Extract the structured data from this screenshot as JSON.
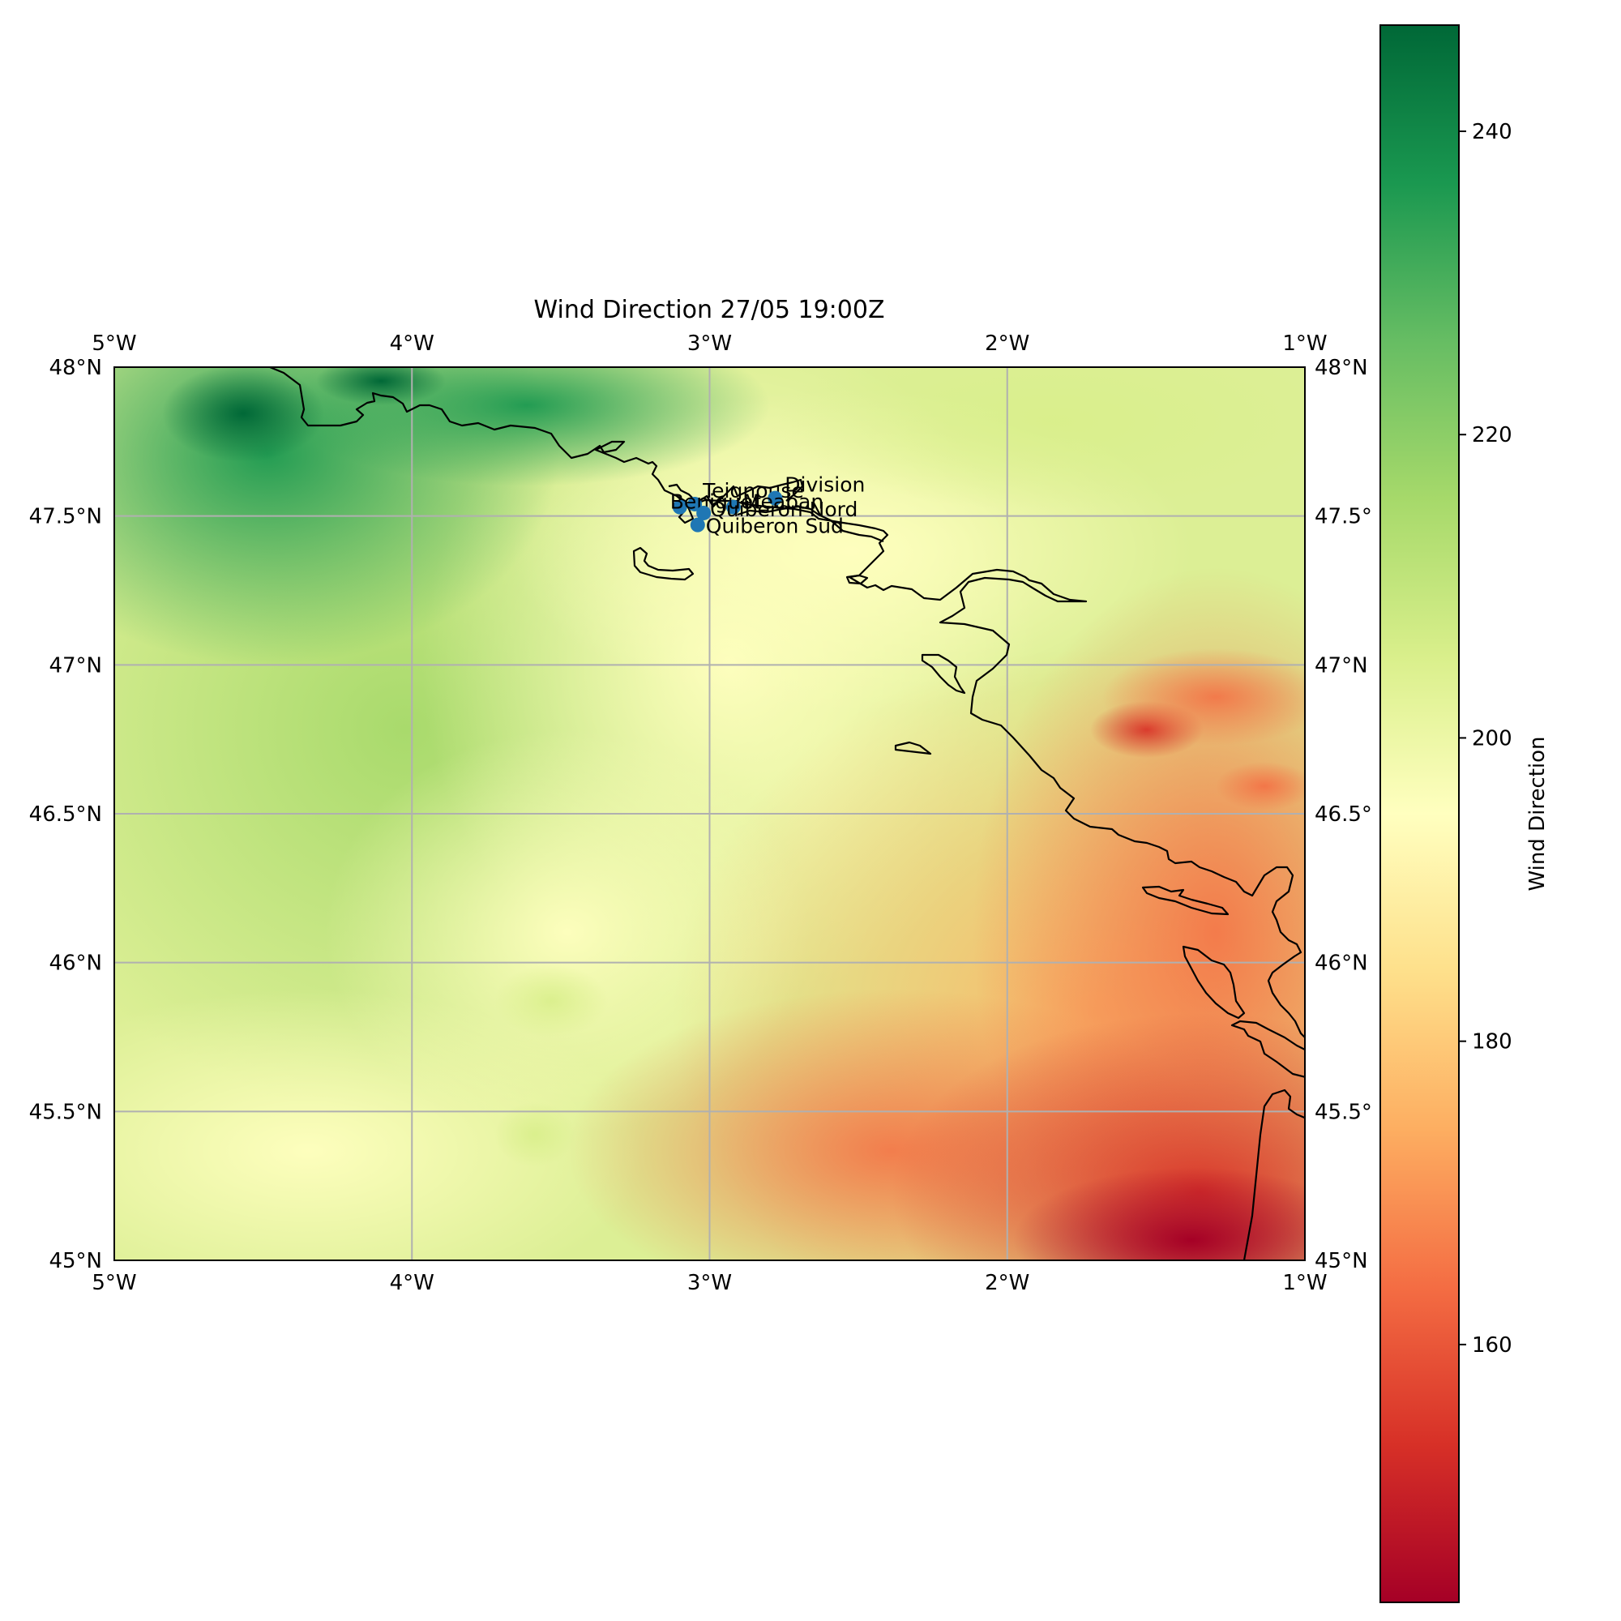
{
  "title": "Wind Direction 27/05 19:00Z",
  "map": {
    "extent": {
      "lon_min": -5,
      "lon_max": -1,
      "lat_min": 45,
      "lat_max": 48
    },
    "lon_ticks": [
      {
        "value": -5,
        "label": "5°W"
      },
      {
        "value": -4,
        "label": "4°W"
      },
      {
        "value": -3,
        "label": "3°W"
      },
      {
        "value": -2,
        "label": "2°W"
      },
      {
        "value": -1,
        "label": "1°W"
      }
    ],
    "lat_ticks_left": [
      {
        "value": 48,
        "label": "48°N"
      },
      {
        "value": 47.5,
        "label": "47.5°N"
      },
      {
        "value": 47,
        "label": "47°N"
      },
      {
        "value": 46.5,
        "label": "46.5°N"
      },
      {
        "value": 46,
        "label": "46°N"
      },
      {
        "value": 45.5,
        "label": "45.5°N"
      },
      {
        "value": 45,
        "label": "45°N"
      }
    ],
    "lat_ticks_right": [
      {
        "value": 48,
        "label": "48°N"
      },
      {
        "value": 47.5,
        "label": "47.5°"
      },
      {
        "value": 47,
        "label": "47°N"
      },
      {
        "value": 46.5,
        "label": "46.5°"
      },
      {
        "value": 46,
        "label": "46°N"
      },
      {
        "value": 45.5,
        "label": "45.5°"
      },
      {
        "value": 45,
        "label": "45°N"
      }
    ],
    "gridlines": true,
    "coastline_color": "#000000",
    "gridline_color": "#b0b0b0",
    "marker_color": "#1f77b4",
    "stations": [
      {
        "name": "Teignouse",
        "lon": -3.05,
        "lat": 47.54
      },
      {
        "name": "Division",
        "lon": -2.78,
        "lat": 47.56
      },
      {
        "name": "Meaban",
        "lon": -2.92,
        "lat": 47.53
      },
      {
        "name": "Beniguet",
        "lon": -3.1,
        "lat": 47.53
      },
      {
        "name": "Quiberon Nord",
        "lon": -3.02,
        "lat": 47.51
      },
      {
        "name": "Quiberon Sud",
        "lon": -3.04,
        "lat": 47.47
      }
    ]
  },
  "colorbar": {
    "label": "Wind Direction",
    "colormap": "RdYlGn",
    "vmin": 143,
    "vmax": 247,
    "ticks": [
      160,
      180,
      200,
      220,
      240
    ]
  }
}
